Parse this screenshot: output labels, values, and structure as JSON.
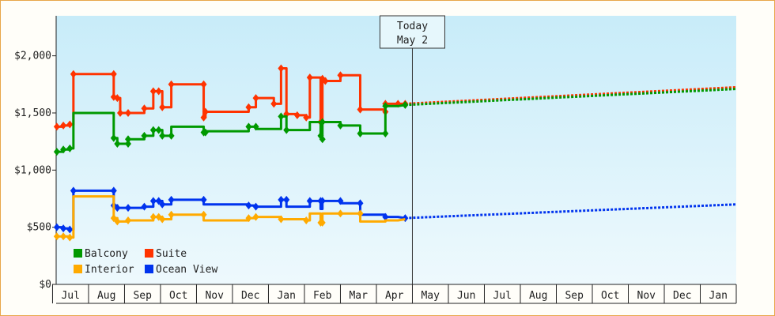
{
  "chart_data": {
    "type": "line",
    "title": "",
    "xlabel": "",
    "ylabel": "",
    "ylim": [
      0,
      2350
    ],
    "yticks": [
      0,
      500,
      1000,
      1500,
      2000
    ],
    "ytick_labels": [
      "$0",
      "$500",
      "$1,000",
      "$1,500",
      "$2,000"
    ],
    "xlim": [
      -0.4,
      18.5
    ],
    "month_labels": [
      "Jul",
      "Aug",
      "Sep",
      "Oct",
      "Nov",
      "Dec",
      "Jan",
      "Feb",
      "Mar",
      "Apr",
      "May",
      "Jun",
      "Jul",
      "Aug",
      "Sep",
      "Oct",
      "Nov",
      "Dec",
      "Jan"
    ],
    "today_index": 10,
    "today_label": [
      "Today",
      "May 2"
    ],
    "legend": [
      "Balcony",
      "Suite",
      "Interior",
      "Ocean View"
    ],
    "legend_position": "bottom-left",
    "background": "light-blue gradient",
    "series": [
      {
        "name": "Suite",
        "color": "#ff3300",
        "points": [
          [
            -0.38,
            1380
          ],
          [
            -0.2,
            1380
          ],
          [
            -0.2,
            1390
          ],
          [
            -0.02,
            1390
          ],
          [
            -0.02,
            1400
          ],
          [
            0.08,
            1400
          ],
          [
            0.08,
            1840
          ],
          [
            1.2,
            1840
          ],
          [
            1.2,
            1640
          ],
          [
            1.3,
            1640
          ],
          [
            1.3,
            1630
          ],
          [
            1.38,
            1630
          ],
          [
            1.38,
            1500
          ],
          [
            1.6,
            1500
          ],
          [
            1.6,
            1500
          ],
          [
            2.05,
            1500
          ],
          [
            2.05,
            1540
          ],
          [
            2.3,
            1540
          ],
          [
            2.3,
            1690
          ],
          [
            2.55,
            1690
          ],
          [
            2.55,
            1550
          ],
          [
            2.8,
            1550
          ],
          [
            2.8,
            1750
          ],
          [
            3.7,
            1750
          ],
          [
            3.7,
            1460
          ],
          [
            3.75,
            1460
          ],
          [
            3.75,
            1510
          ],
          [
            4.95,
            1510
          ],
          [
            4.95,
            1550
          ],
          [
            5.15,
            1550
          ],
          [
            5.15,
            1630
          ],
          [
            5.65,
            1630
          ],
          [
            5.65,
            1580
          ],
          [
            5.85,
            1580
          ],
          [
            5.85,
            1890
          ],
          [
            6.0,
            1890
          ],
          [
            6.0,
            1490
          ],
          [
            6.3,
            1490
          ],
          [
            6.3,
            1480
          ],
          [
            6.55,
            1480
          ],
          [
            6.55,
            1460
          ],
          [
            6.65,
            1460
          ],
          [
            6.65,
            1810
          ],
          [
            6.95,
            1810
          ],
          [
            6.95,
            1420
          ],
          [
            7.0,
            1420
          ],
          [
            7.0,
            1800
          ],
          [
            7.08,
            1800
          ],
          [
            7.08,
            1780
          ],
          [
            7.5,
            1780
          ],
          [
            7.5,
            1830
          ],
          [
            8.05,
            1830
          ],
          [
            8.05,
            1530
          ],
          [
            8.75,
            1530
          ],
          [
            8.75,
            1510
          ],
          [
            8.75,
            1580
          ],
          [
            9.1,
            1580
          ],
          [
            9.1,
            1580
          ],
          [
            9.3,
            1580
          ],
          [
            9.3,
            1580
          ]
        ],
        "markers": [
          [
            -0.38,
            1380
          ],
          [
            -0.2,
            1390
          ],
          [
            -0.02,
            1400
          ],
          [
            0.08,
            1840
          ],
          [
            1.2,
            1840
          ],
          [
            1.2,
            1640
          ],
          [
            1.3,
            1630
          ],
          [
            1.38,
            1500
          ],
          [
            1.6,
            1500
          ],
          [
            2.05,
            1540
          ],
          [
            2.3,
            1690
          ],
          [
            2.45,
            1690
          ],
          [
            2.55,
            1550
          ],
          [
            2.8,
            1750
          ],
          [
            3.7,
            1750
          ],
          [
            3.7,
            1460
          ],
          [
            3.75,
            1510
          ],
          [
            4.95,
            1550
          ],
          [
            5.15,
            1630
          ],
          [
            5.65,
            1580
          ],
          [
            5.85,
            1890
          ],
          [
            6.0,
            1490
          ],
          [
            6.3,
            1480
          ],
          [
            6.55,
            1460
          ],
          [
            6.65,
            1810
          ],
          [
            6.95,
            1420
          ],
          [
            7.0,
            1800
          ],
          [
            7.08,
            1780
          ],
          [
            7.5,
            1830
          ],
          [
            8.05,
            1530
          ],
          [
            8.75,
            1510
          ],
          [
            8.75,
            1580
          ],
          [
            9.1,
            1580
          ],
          [
            9.3,
            1580
          ]
        ],
        "forecast": [
          [
            9.3,
            1580
          ],
          [
            18.5,
            1725
          ]
        ]
      },
      {
        "name": "Balcony",
        "color": "#009900",
        "points": [
          [
            -0.38,
            1160
          ],
          [
            -0.2,
            1160
          ],
          [
            -0.2,
            1180
          ],
          [
            -0.02,
            1180
          ],
          [
            -0.02,
            1190
          ],
          [
            0.08,
            1190
          ],
          [
            0.08,
            1500
          ],
          [
            1.2,
            1500
          ],
          [
            1.2,
            1280
          ],
          [
            1.3,
            1280
          ],
          [
            1.3,
            1230
          ],
          [
            1.6,
            1230
          ],
          [
            1.6,
            1270
          ],
          [
            2.05,
            1270
          ],
          [
            2.05,
            1300
          ],
          [
            2.3,
            1300
          ],
          [
            2.3,
            1350
          ],
          [
            2.55,
            1350
          ],
          [
            2.55,
            1300
          ],
          [
            2.8,
            1300
          ],
          [
            2.8,
            1380
          ],
          [
            3.7,
            1380
          ],
          [
            3.7,
            1330
          ],
          [
            3.75,
            1330
          ],
          [
            3.75,
            1340
          ],
          [
            4.95,
            1340
          ],
          [
            4.95,
            1380
          ],
          [
            5.15,
            1380
          ],
          [
            5.15,
            1360
          ],
          [
            5.85,
            1360
          ],
          [
            5.85,
            1470
          ],
          [
            6.0,
            1470
          ],
          [
            6.0,
            1350
          ],
          [
            6.65,
            1350
          ],
          [
            6.65,
            1420
          ],
          [
            6.95,
            1420
          ],
          [
            6.95,
            1300
          ],
          [
            7.0,
            1300
          ],
          [
            7.0,
            1420
          ],
          [
            7.5,
            1420
          ],
          [
            7.5,
            1390
          ],
          [
            8.05,
            1390
          ],
          [
            8.05,
            1320
          ],
          [
            8.75,
            1320
          ],
          [
            8.75,
            1560
          ],
          [
            9.1,
            1560
          ],
          [
            9.3,
            1570
          ]
        ],
        "markers": [
          [
            -0.38,
            1160
          ],
          [
            -0.2,
            1180
          ],
          [
            -0.02,
            1190
          ],
          [
            1.2,
            1280
          ],
          [
            1.3,
            1230
          ],
          [
            1.6,
            1230
          ],
          [
            1.6,
            1270
          ],
          [
            2.05,
            1300
          ],
          [
            2.3,
            1350
          ],
          [
            2.45,
            1350
          ],
          [
            2.55,
            1300
          ],
          [
            2.8,
            1300
          ],
          [
            3.7,
            1330
          ],
          [
            3.75,
            1330
          ],
          [
            4.95,
            1380
          ],
          [
            5.15,
            1380
          ],
          [
            5.85,
            1470
          ],
          [
            6.0,
            1350
          ],
          [
            6.95,
            1300
          ],
          [
            7.0,
            1270
          ],
          [
            7.0,
            1420
          ],
          [
            7.5,
            1390
          ],
          [
            8.05,
            1320
          ],
          [
            8.75,
            1320
          ],
          [
            8.75,
            1560
          ],
          [
            9.3,
            1570
          ]
        ],
        "forecast": [
          [
            9.3,
            1570
          ],
          [
            18.5,
            1710
          ]
        ]
      },
      {
        "name": "Ocean View",
        "color": "#0033ee",
        "points": [
          [
            -0.38,
            500
          ],
          [
            -0.2,
            500
          ],
          [
            -0.2,
            490
          ],
          [
            -0.02,
            490
          ],
          [
            -0.02,
            480
          ],
          [
            0.08,
            480
          ],
          [
            0.08,
            820
          ],
          [
            1.2,
            820
          ],
          [
            1.2,
            690
          ],
          [
            1.3,
            690
          ],
          [
            1.3,
            670
          ],
          [
            1.6,
            670
          ],
          [
            1.6,
            670
          ],
          [
            2.05,
            670
          ],
          [
            2.05,
            680
          ],
          [
            2.3,
            680
          ],
          [
            2.3,
            730
          ],
          [
            2.55,
            730
          ],
          [
            2.55,
            700
          ],
          [
            2.8,
            700
          ],
          [
            2.8,
            740
          ],
          [
            3.7,
            740
          ],
          [
            3.7,
            700
          ],
          [
            4.95,
            700
          ],
          [
            4.95,
            690
          ],
          [
            5.15,
            690
          ],
          [
            5.15,
            680
          ],
          [
            5.85,
            680
          ],
          [
            5.85,
            740
          ],
          [
            6.0,
            740
          ],
          [
            6.0,
            680
          ],
          [
            6.65,
            680
          ],
          [
            6.65,
            730
          ],
          [
            6.95,
            730
          ],
          [
            6.95,
            660
          ],
          [
            7.0,
            660
          ],
          [
            7.0,
            730
          ],
          [
            7.5,
            730
          ],
          [
            7.5,
            710
          ],
          [
            8.05,
            710
          ],
          [
            8.05,
            610
          ],
          [
            8.75,
            610
          ],
          [
            8.75,
            590
          ],
          [
            9.1,
            590
          ],
          [
            9.3,
            580
          ]
        ],
        "markers": [
          [
            -0.38,
            500
          ],
          [
            -0.2,
            490
          ],
          [
            -0.02,
            480
          ],
          [
            0.08,
            820
          ],
          [
            1.2,
            820
          ],
          [
            1.2,
            690
          ],
          [
            1.3,
            670
          ],
          [
            1.6,
            670
          ],
          [
            2.05,
            680
          ],
          [
            2.3,
            730
          ],
          [
            2.45,
            730
          ],
          [
            2.55,
            700
          ],
          [
            2.8,
            740
          ],
          [
            3.7,
            740
          ],
          [
            4.95,
            690
          ],
          [
            5.15,
            680
          ],
          [
            5.85,
            740
          ],
          [
            6.0,
            740
          ],
          [
            6.65,
            730
          ],
          [
            6.95,
            730
          ],
          [
            7.0,
            730
          ],
          [
            7.5,
            730
          ],
          [
            8.05,
            710
          ],
          [
            8.75,
            590
          ],
          [
            9.3,
            580
          ]
        ],
        "forecast": [
          [
            9.3,
            580
          ],
          [
            18.5,
            700
          ]
        ]
      },
      {
        "name": "Interior",
        "color": "#ffaa00",
        "points": [
          [
            -0.38,
            420
          ],
          [
            -0.2,
            420
          ],
          [
            -0.2,
            420
          ],
          [
            -0.02,
            420
          ],
          [
            -0.02,
            410
          ],
          [
            0.08,
            410
          ],
          [
            0.08,
            770
          ],
          [
            1.2,
            770
          ],
          [
            1.2,
            580
          ],
          [
            1.3,
            580
          ],
          [
            1.3,
            550
          ],
          [
            1.6,
            550
          ],
          [
            1.6,
            560
          ],
          [
            2.3,
            560
          ],
          [
            2.3,
            590
          ],
          [
            2.55,
            590
          ],
          [
            2.55,
            570
          ],
          [
            2.8,
            570
          ],
          [
            2.8,
            610
          ],
          [
            3.7,
            610
          ],
          [
            3.7,
            560
          ],
          [
            4.95,
            560
          ],
          [
            4.95,
            580
          ],
          [
            5.15,
            580
          ],
          [
            5.15,
            590
          ],
          [
            5.85,
            590
          ],
          [
            5.85,
            570
          ],
          [
            6.55,
            570
          ],
          [
            6.55,
            560
          ],
          [
            6.65,
            560
          ],
          [
            6.65,
            620
          ],
          [
            6.95,
            620
          ],
          [
            6.95,
            540
          ],
          [
            7.0,
            540
          ],
          [
            7.0,
            620
          ],
          [
            8.05,
            620
          ],
          [
            8.05,
            550
          ],
          [
            8.75,
            550
          ],
          [
            8.75,
            560
          ],
          [
            9.1,
            560
          ],
          [
            9.3,
            570
          ]
        ],
        "markers": [
          [
            -0.38,
            420
          ],
          [
            -0.2,
            420
          ],
          [
            -0.02,
            410
          ],
          [
            1.2,
            580
          ],
          [
            1.3,
            550
          ],
          [
            1.6,
            560
          ],
          [
            2.3,
            590
          ],
          [
            2.45,
            590
          ],
          [
            2.55,
            570
          ],
          [
            2.8,
            610
          ],
          [
            3.7,
            610
          ],
          [
            4.95,
            580
          ],
          [
            5.15,
            590
          ],
          [
            5.85,
            570
          ],
          [
            6.55,
            560
          ],
          [
            6.95,
            540
          ],
          [
            7.0,
            540
          ],
          [
            7.5,
            620
          ],
          [
            8.05,
            620
          ]
        ],
        "forecast": []
      }
    ]
  }
}
